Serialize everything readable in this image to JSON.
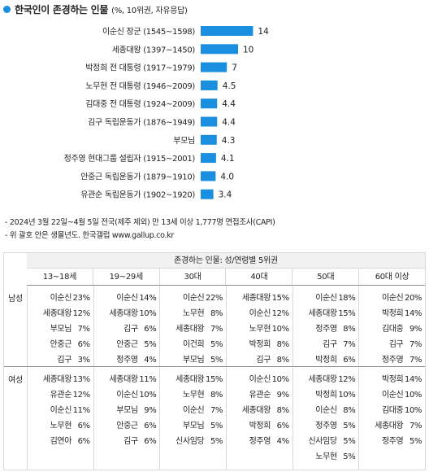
{
  "title": {
    "main": "한국인이 존경하는 인물",
    "sub": "(%, 10위권, 자유응답)",
    "accent": "#1a8fe0"
  },
  "chart_data": {
    "type": "bar",
    "orientation": "horizontal",
    "title": "한국인이 존경하는 인물",
    "subtitle": "(%, 10위권, 자유응답)",
    "xlabel": "",
    "ylabel": "",
    "xlim": [
      0,
      14
    ],
    "grid": false,
    "bar_color": "#1a8fe0",
    "categories": [
      "이순신 장군 (1545~1598)",
      "세종대왕 (1397~1450)",
      "박정희 전 대통령 (1917~1979)",
      "노무현 전 대통령 (1946~2009)",
      "김대중 전 대통령 (1924~2009)",
      "김구 독립운동가 (1876~1949)",
      "부모님",
      "정주영 현대그룹 설립자 (1915~2001)",
      "안중근 독립운동가 (1879~1910)",
      "유관순 독립운동가 (1902~1920)"
    ],
    "values": [
      14,
      10,
      7,
      4.5,
      4.4,
      4.4,
      4.3,
      4.1,
      4.0,
      3.4
    ],
    "value_labels": [
      "14",
      "10",
      "7",
      "4.5",
      "4.4",
      "4.4",
      "4.3",
      "4.1",
      "4.0",
      "3.4"
    ]
  },
  "notes": [
    "- 2024년 3월 22일~4월 5일 전국(제주 제외) 만 13세 이상 1,777명 면접조사(CAPI)",
    "- 위 괄호 안은 생몰년도. 한국갤럽 www.gallup.co.kr"
  ],
  "table": {
    "title": "존경하는 인물: 성/연령별 5위권",
    "age_groups": [
      "13~18세",
      "19~29세",
      "30대",
      "40대",
      "50대",
      "60대 이상"
    ],
    "sections": [
      {
        "label": "남성",
        "columns": [
          [
            [
              "이순신",
              "23%"
            ],
            [
              "세종대왕",
              "12%"
            ],
            [
              "부모님",
              "7%"
            ],
            [
              "안중근",
              "6%"
            ],
            [
              "김구",
              "3%"
            ]
          ],
          [
            [
              "이순신",
              "14%"
            ],
            [
              "세종대왕",
              "10%"
            ],
            [
              "김구",
              "6%"
            ],
            [
              "안중근",
              "5%"
            ],
            [
              "정주영",
              "4%"
            ]
          ],
          [
            [
              "이순신",
              "22%"
            ],
            [
              "노무현",
              "8%"
            ],
            [
              "세종대왕",
              "7%"
            ],
            [
              "이건희",
              "5%"
            ],
            [
              "부모님",
              "5%"
            ]
          ],
          [
            [
              "세종대왕",
              "15%"
            ],
            [
              "이순신",
              "12%"
            ],
            [
              "노무현",
              "10%"
            ],
            [
              "박정희",
              "8%"
            ],
            [
              "김구",
              "8%"
            ]
          ],
          [
            [
              "이순신",
              "18%"
            ],
            [
              "세종대왕",
              "15%"
            ],
            [
              "정주영",
              "8%"
            ],
            [
              "김구",
              "7%"
            ],
            [
              "박정희",
              "6%"
            ]
          ],
          [
            [
              "이순신",
              "20%"
            ],
            [
              "박정희",
              "14%"
            ],
            [
              "김대중",
              "9%"
            ],
            [
              "김구",
              "7%"
            ],
            [
              "정주영",
              "7%"
            ]
          ]
        ]
      },
      {
        "label": "여성",
        "columns": [
          [
            [
              "세종대왕",
              "13%"
            ],
            [
              "유관순",
              "12%"
            ],
            [
              "이순신",
              "11%"
            ],
            [
              "노무현",
              "6%"
            ],
            [
              "김연아",
              "6%"
            ]
          ],
          [
            [
              "세종대왕",
              "11%"
            ],
            [
              "이순신",
              "10%"
            ],
            [
              "부모님",
              "9%"
            ],
            [
              "안중근",
              "6%"
            ],
            [
              "김구",
              "6%"
            ]
          ],
          [
            [
              "세종대왕",
              "15%"
            ],
            [
              "노무현",
              "8%"
            ],
            [
              "이순신",
              "7%"
            ],
            [
              "부모님",
              "5%"
            ],
            [
              "신사임당",
              "5%"
            ]
          ],
          [
            [
              "이순신",
              "10%"
            ],
            [
              "유관순",
              "9%"
            ],
            [
              "세종대왕",
              "8%"
            ],
            [
              "박정희",
              "6%"
            ],
            [
              "정주영",
              "4%"
            ]
          ],
          [
            [
              "세종대왕",
              "12%"
            ],
            [
              "박정희",
              "10%"
            ],
            [
              "이순신",
              "8%"
            ],
            [
              "정주영",
              "5%"
            ],
            [
              "신사임당",
              "5%"
            ],
            [
              "노무현",
              "5%"
            ]
          ],
          [
            [
              "박정희",
              "14%"
            ],
            [
              "이순신",
              "10%"
            ],
            [
              "김대중",
              "10%"
            ],
            [
              "세종대왕",
              "7%"
            ],
            [
              "정주영",
              "5%"
            ]
          ]
        ]
      }
    ]
  }
}
